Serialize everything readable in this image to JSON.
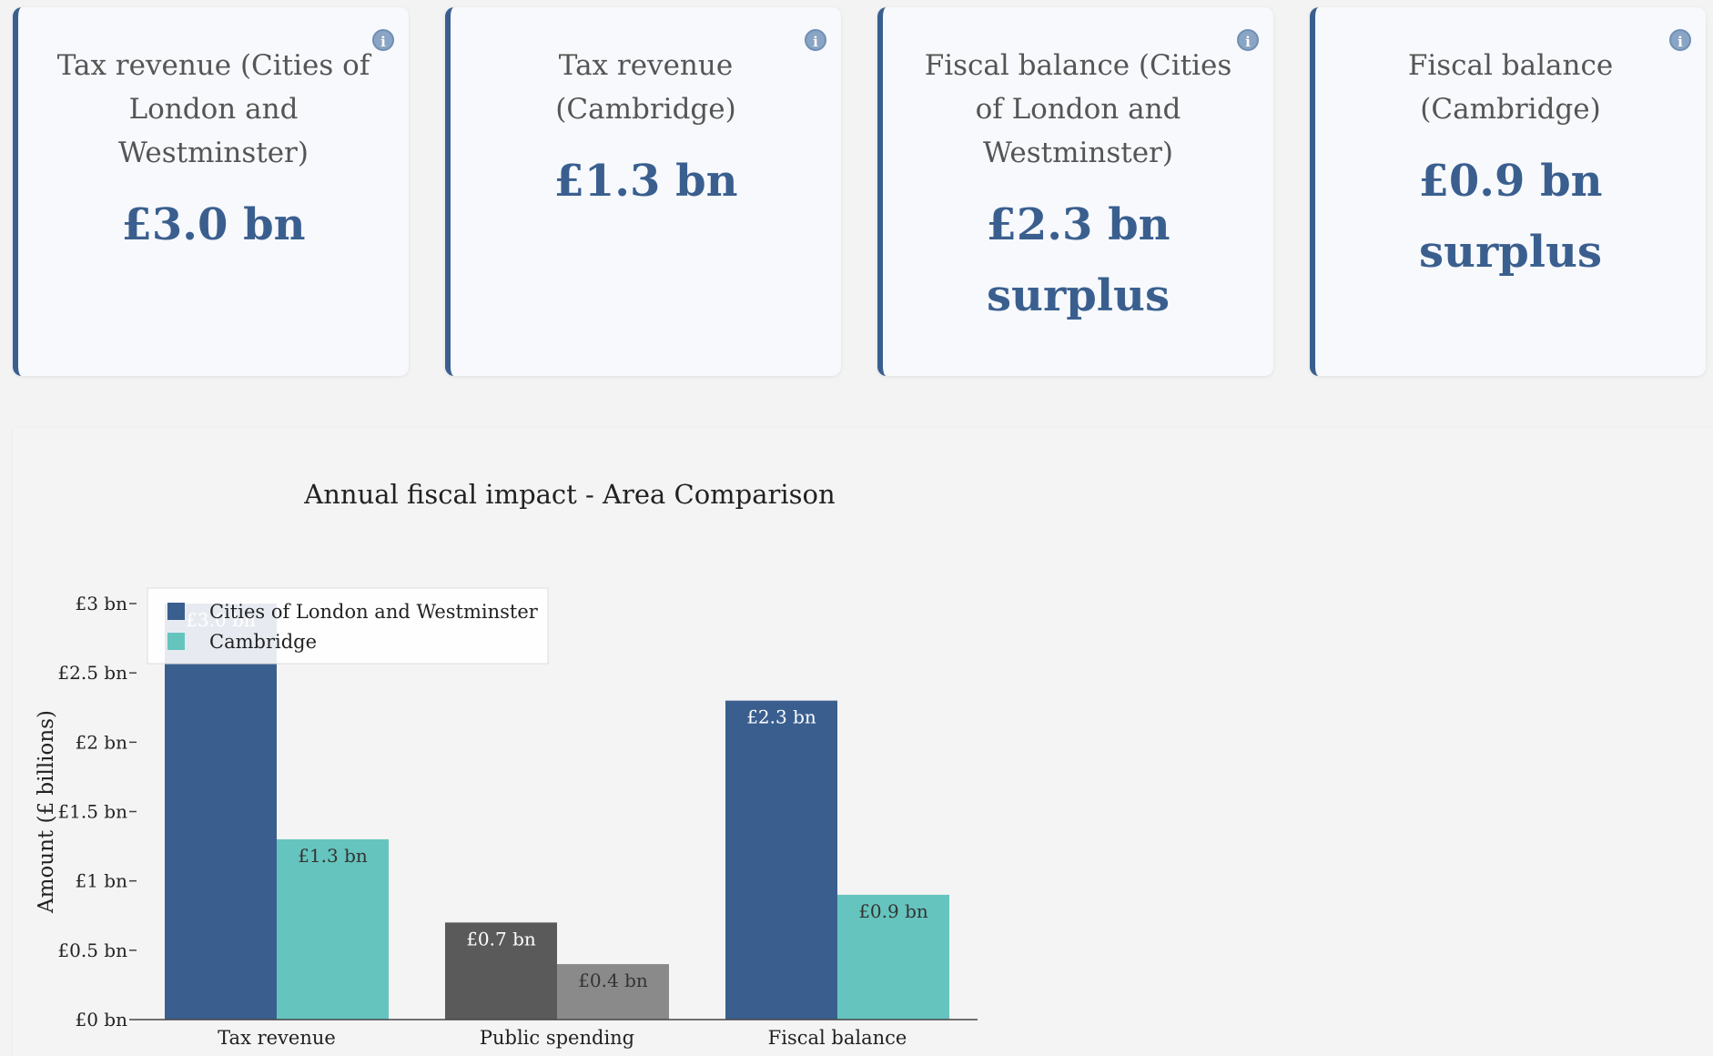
{
  "cards": [
    {
      "label": "Tax revenue (Cities of London and Westminster)",
      "value": "£3.0 bn",
      "info_icon": "info-icon"
    },
    {
      "label": "Tax revenue (Cambridge)",
      "value": "£1.3 bn",
      "info_icon": "info-icon"
    },
    {
      "label": "Fiscal balance (Cities of London and Westminster)",
      "value": "£2.3 bn surplus",
      "info_icon": "info-icon"
    },
    {
      "label": "Fiscal balance (Cambridge)",
      "value": "£0.9 bn surplus",
      "info_icon": "info-icon"
    }
  ],
  "info_glyph": "i",
  "chart_data": {
    "type": "bar",
    "title": "Annual fiscal impact - Area Comparison",
    "categories": [
      "Tax revenue",
      "Public spending",
      "Fiscal balance"
    ],
    "ylabel": "Amount (£ billions)",
    "xlabel": "",
    "ylim": [
      0,
      3
    ],
    "y_ticks": [
      {
        "value": 0,
        "label": "£0 bn"
      },
      {
        "value": 0.5,
        "label": "£0.5 bn"
      },
      {
        "value": 1,
        "label": "£1 bn"
      },
      {
        "value": 1.5,
        "label": "£1.5 bn"
      },
      {
        "value": 2,
        "label": "£2 bn"
      },
      {
        "value": 2.5,
        "label": "£2.5 bn"
      },
      {
        "value": 3,
        "label": "£3 bn"
      }
    ],
    "grid": false,
    "legend_position": "top-left",
    "series": [
      {
        "name": "Cities of London and Westminster",
        "values": [
          3.0,
          0.7,
          2.3
        ],
        "labels": [
          "£3.0 bn",
          "£0.7 bn",
          "£2.3 bn"
        ],
        "colors": [
          "#3a5f8f",
          "#5a5a5a",
          "#3a5f8f"
        ],
        "legend_color": "#3a5f8f",
        "label_color": "#ffffff"
      },
      {
        "name": "Cambridge",
        "values": [
          1.3,
          0.4,
          0.9
        ],
        "labels": [
          "£1.3 bn",
          "£0.4 bn",
          "£0.9 bn"
        ],
        "colors": [
          "#66c4be",
          "#8a8a8a",
          "#66c4be"
        ],
        "legend_color": "#66c4be",
        "label_color": "#333333"
      }
    ]
  }
}
